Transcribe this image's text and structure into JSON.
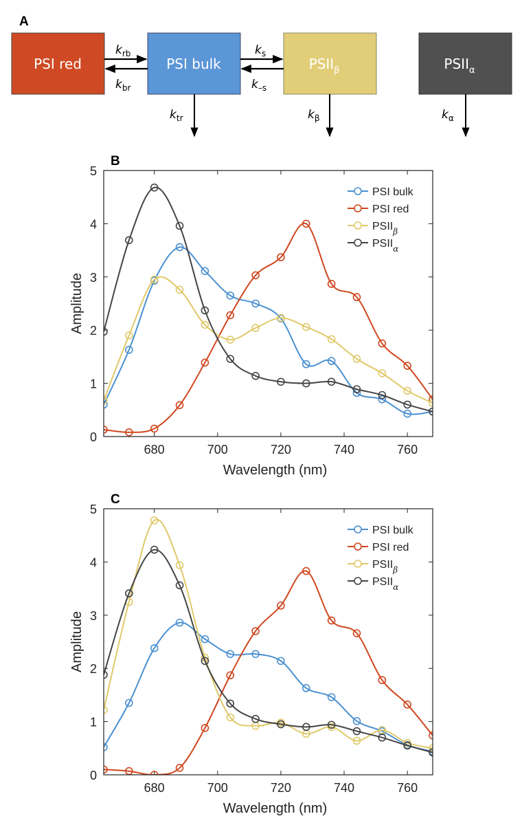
{
  "diagram": {
    "panel_label": "A",
    "boxes": [
      {
        "label": "PSI red",
        "sub": "",
        "color": "#cf4a24"
      },
      {
        "label": "PSI bulk",
        "sub": "",
        "color": "#5b96d6"
      },
      {
        "label": "PSII",
        "sub": "β",
        "color": "#e2cd78"
      },
      {
        "label": "PSII",
        "sub": "α",
        "color": "#505050"
      }
    ],
    "rates": {
      "k_rb": {
        "k": "k",
        "sub": "rb"
      },
      "k_br": {
        "k": "k",
        "sub": "br"
      },
      "k_s": {
        "k": "k",
        "sub": "s"
      },
      "k_minus_s": {
        "k": "k",
        "sub": "–s"
      },
      "k_tr": {
        "k": "k",
        "sub": "tr"
      },
      "k_beta": {
        "k": "k",
        "sub": "β"
      },
      "k_alpha": {
        "k": "k",
        "sub": "α"
      }
    }
  },
  "chart_data": [
    {
      "panel_label": "B",
      "type": "line",
      "xlabel": "Wavelength (nm)",
      "ylabel": "Amplitude",
      "xlim": [
        664,
        768
      ],
      "ylim": [
        0,
        5
      ],
      "xticks": [
        680,
        700,
        720,
        740,
        760
      ],
      "yticks": [
        0,
        1,
        2,
        3,
        4,
        5
      ],
      "legend_position": "top-right",
      "x": [
        664,
        672,
        680,
        688,
        696,
        704,
        712,
        720,
        728,
        736,
        744,
        752,
        760,
        768
      ],
      "series": [
        {
          "name": "PSI bulk",
          "sub": "",
          "color": "#4a90d0",
          "values": [
            0.6,
            1.63,
            2.93,
            3.56,
            3.11,
            2.65,
            2.5,
            2.22,
            1.36,
            1.42,
            0.82,
            0.7,
            0.43,
            0.47
          ]
        },
        {
          "name": "PSI red",
          "sub": "",
          "color": "#d0461e",
          "values": [
            0.13,
            0.08,
            0.15,
            0.59,
            1.39,
            2.28,
            3.03,
            3.37,
            4.0,
            2.87,
            2.62,
            1.75,
            1.33,
            0.7
          ]
        },
        {
          "name": "PSII",
          "sub": "β",
          "color": "#e0c96a",
          "values": [
            0.68,
            1.9,
            2.95,
            2.76,
            2.1,
            1.82,
            2.04,
            2.23,
            2.06,
            1.83,
            1.46,
            1.19,
            0.86,
            0.63
          ]
        },
        {
          "name": "PSII",
          "sub": "α",
          "color": "#444444",
          "values": [
            1.97,
            3.69,
            4.68,
            3.96,
            2.37,
            1.46,
            1.14,
            1.03,
            1.0,
            1.03,
            0.89,
            0.78,
            0.6,
            0.47
          ]
        }
      ]
    },
    {
      "panel_label": "C",
      "type": "line",
      "xlabel": "Wavelength (nm)",
      "ylabel": "Amplitude",
      "xlim": [
        664,
        768
      ],
      "ylim": [
        0,
        5
      ],
      "xticks": [
        680,
        700,
        720,
        740,
        760
      ],
      "yticks": [
        0,
        1,
        2,
        3,
        4,
        5
      ],
      "legend_position": "top-right",
      "x": [
        664,
        672,
        680,
        688,
        696,
        704,
        712,
        720,
        728,
        736,
        744,
        752,
        760,
        768
      ],
      "series": [
        {
          "name": "PSI bulk",
          "sub": "",
          "color": "#4a90d0",
          "values": [
            0.52,
            1.35,
            2.38,
            2.86,
            2.55,
            2.27,
            2.27,
            2.14,
            1.63,
            1.46,
            1.01,
            0.82,
            0.56,
            0.44
          ]
        },
        {
          "name": "PSI red",
          "sub": "",
          "color": "#d0461e",
          "values": [
            0.1,
            0.07,
            0.0,
            0.13,
            0.88,
            1.87,
            2.7,
            3.18,
            3.83,
            2.9,
            2.66,
            1.78,
            1.32,
            0.74
          ]
        },
        {
          "name": "PSII",
          "sub": "β",
          "color": "#e0c96a",
          "values": [
            1.22,
            3.25,
            4.78,
            3.94,
            2.2,
            1.08,
            0.92,
            0.98,
            0.77,
            0.9,
            0.64,
            0.84,
            0.6,
            0.5
          ]
        },
        {
          "name": "PSII",
          "sub": "α",
          "color": "#444444",
          "values": [
            1.88,
            3.41,
            4.23,
            3.56,
            2.14,
            1.34,
            1.05,
            0.95,
            0.9,
            0.94,
            0.82,
            0.7,
            0.55,
            0.42
          ]
        }
      ]
    }
  ]
}
